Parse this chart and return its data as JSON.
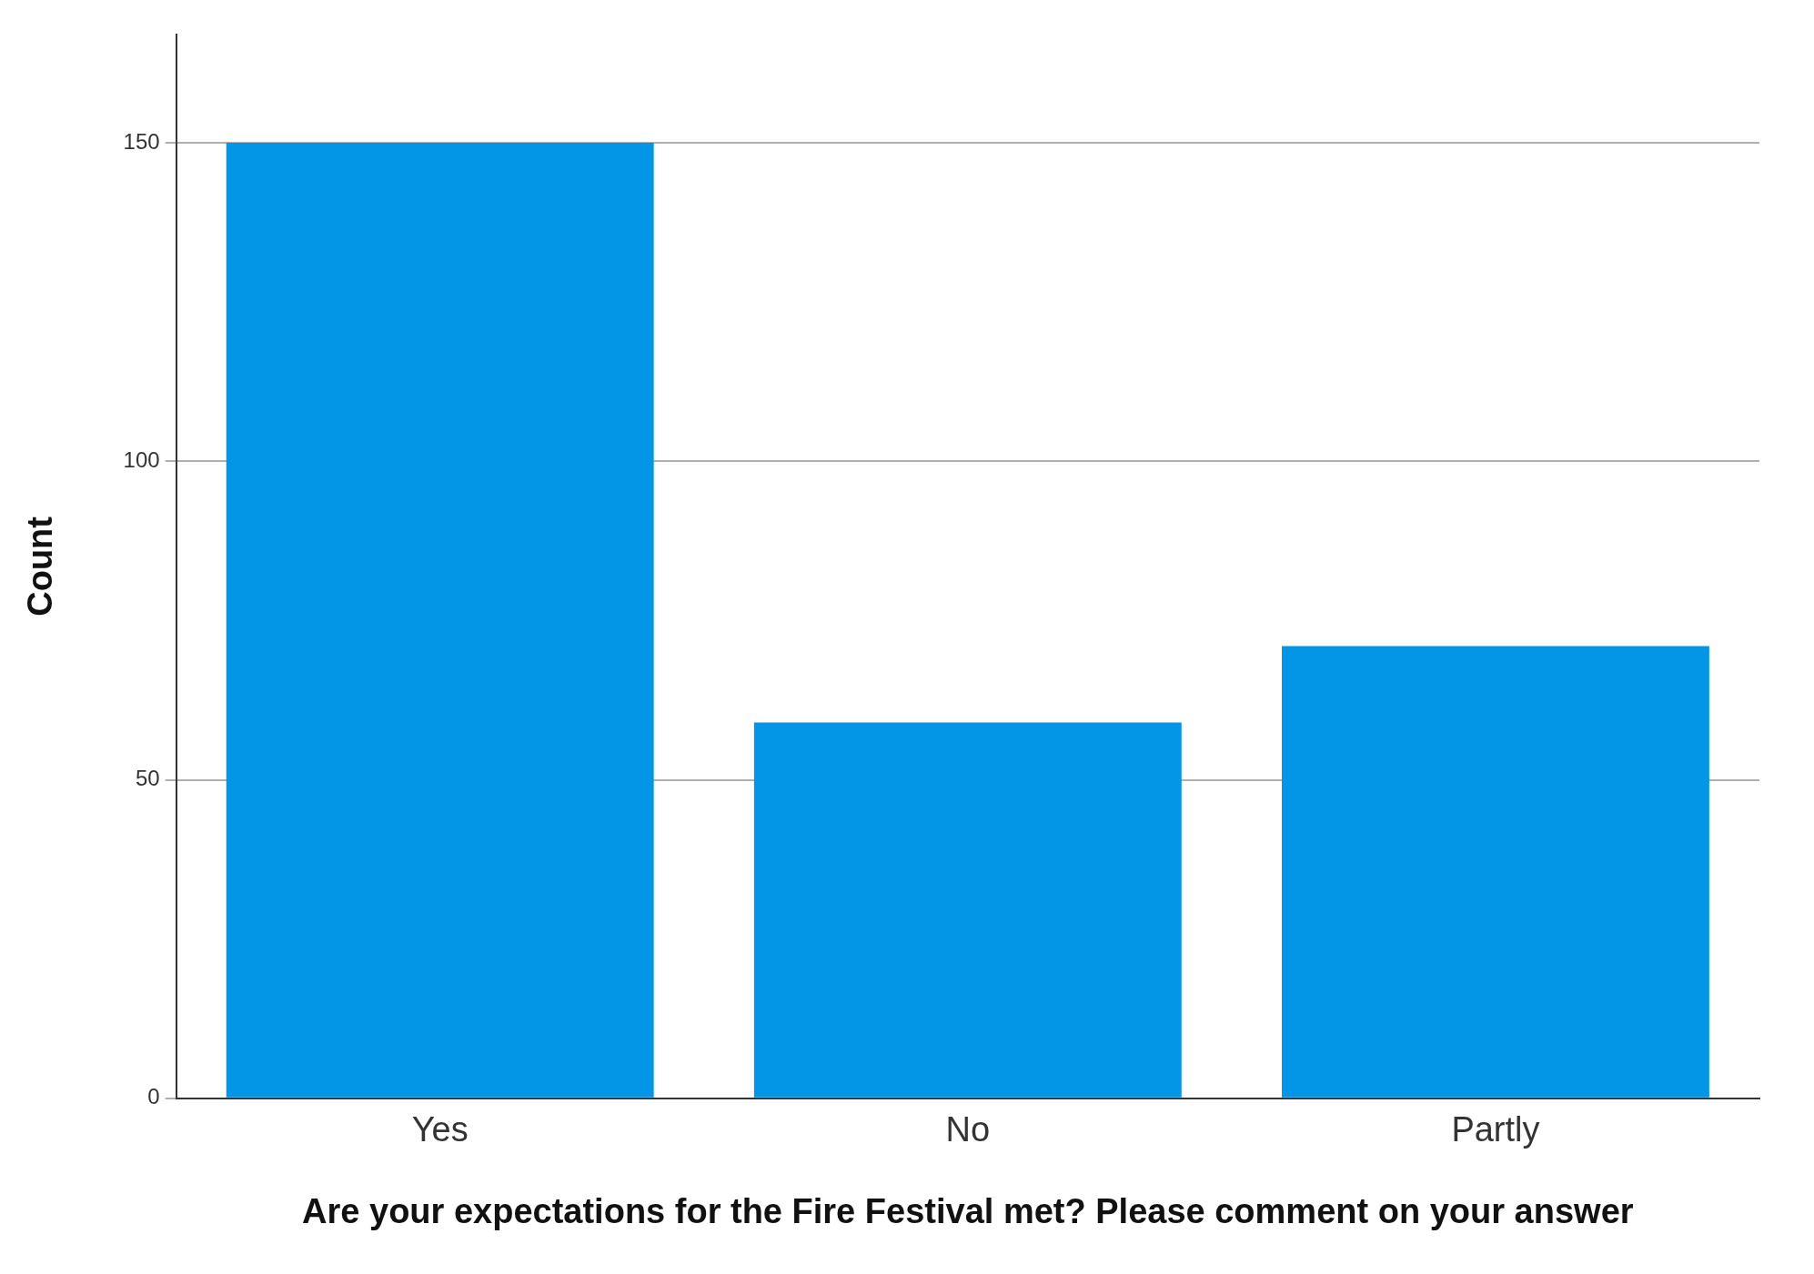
{
  "chart_data": {
    "type": "bar",
    "xlabel": "Are your expectations for the Fire Festival met? Please comment on your answer",
    "ylabel": "Count",
    "categories": [
      "Yes",
      "No",
      "Partly"
    ],
    "values": [
      150,
      59,
      71
    ],
    "color": "#0396e6",
    "ylim": [
      0,
      167
    ],
    "yticks": [
      0,
      50,
      100,
      150
    ],
    "grid": "y",
    "legend": false
  }
}
